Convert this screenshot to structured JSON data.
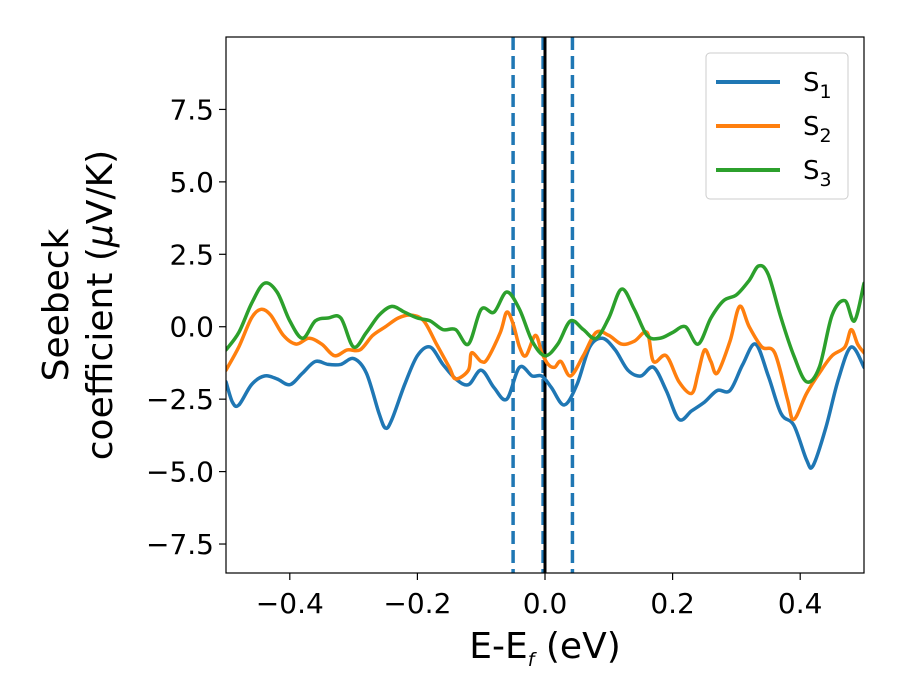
{
  "chart_data": {
    "type": "line",
    "xlabel": "E-E",
    "xlabel_sub": "f",
    "xlabel_unit": " (eV)",
    "ylabel_line1": "Seebeck",
    "ylabel_line2_a": "coefficient  (",
    "ylabel_mu": "μ",
    "ylabel_line2_b": "V/K)",
    "xlim": [
      -0.5,
      0.5
    ],
    "ylim": [
      -8.5,
      10.0
    ],
    "xticks": [
      -0.4,
      -0.2,
      0.0,
      0.2,
      0.4
    ],
    "xtick_labels": [
      "−0.4",
      "−0.2",
      "0.0",
      "0.2",
      "0.4"
    ],
    "yticks": [
      -7.5,
      -5.0,
      -2.5,
      0.0,
      2.5,
      5.0,
      7.5
    ],
    "ytick_labels": [
      "−7.5",
      "−5.0",
      "−2.5",
      "0.0",
      "2.5",
      "5.0",
      "7.5"
    ],
    "grid": false,
    "legend_position": "top-right",
    "vlines": [
      {
        "x": -0.05,
        "style": "dashed",
        "color": "#1f77b4"
      },
      {
        "x": -0.003,
        "style": "dashed",
        "color": "#1f77b4"
      },
      {
        "x": 0.043,
        "style": "dashed",
        "color": "#1f77b4"
      },
      {
        "x": 0.0,
        "style": "solid",
        "color": "#000000"
      }
    ],
    "series": [
      {
        "name": "S",
        "sub": "1",
        "color": "#1f77b4",
        "points": [
          [
            -0.5,
            -1.9
          ],
          [
            -0.49,
            -2.6
          ],
          [
            -0.48,
            -2.7
          ],
          [
            -0.46,
            -2.0
          ],
          [
            -0.44,
            -1.7
          ],
          [
            -0.42,
            -1.8
          ],
          [
            -0.4,
            -2.0
          ],
          [
            -0.38,
            -1.6
          ],
          [
            -0.36,
            -1.2
          ],
          [
            -0.34,
            -1.3
          ],
          [
            -0.32,
            -1.3
          ],
          [
            -0.3,
            -1.1
          ],
          [
            -0.28,
            -1.6
          ],
          [
            -0.26,
            -3.0
          ],
          [
            -0.25,
            -3.5
          ],
          [
            -0.24,
            -3.2
          ],
          [
            -0.22,
            -2.0
          ],
          [
            -0.2,
            -1.0
          ],
          [
            -0.18,
            -0.7
          ],
          [
            -0.16,
            -1.3
          ],
          [
            -0.14,
            -1.8
          ],
          [
            -0.12,
            -2.0
          ],
          [
            -0.1,
            -1.5
          ],
          [
            -0.08,
            -2.1
          ],
          [
            -0.06,
            -2.5
          ],
          [
            -0.04,
            -1.4
          ],
          [
            -0.02,
            -1.7
          ],
          [
            -0.005,
            -1.7
          ],
          [
            0.01,
            -2.1
          ],
          [
            0.03,
            -2.7
          ],
          [
            0.05,
            -2.0
          ],
          [
            0.07,
            -0.7
          ],
          [
            0.09,
            -0.4
          ],
          [
            0.11,
            -0.8
          ],
          [
            0.13,
            -1.5
          ],
          [
            0.15,
            -1.7
          ],
          [
            0.17,
            -1.4
          ],
          [
            0.19,
            -2.2
          ],
          [
            0.21,
            -3.2
          ],
          [
            0.23,
            -2.9
          ],
          [
            0.25,
            -2.6
          ],
          [
            0.27,
            -2.2
          ],
          [
            0.29,
            -2.2
          ],
          [
            0.31,
            -1.3
          ],
          [
            0.33,
            -0.6
          ],
          [
            0.35,
            -1.7
          ],
          [
            0.37,
            -3.0
          ],
          [
            0.39,
            -3.4
          ],
          [
            0.41,
            -4.6
          ],
          [
            0.42,
            -4.8
          ],
          [
            0.44,
            -3.5
          ],
          [
            0.46,
            -1.8
          ],
          [
            0.48,
            -0.7
          ],
          [
            0.5,
            -1.4
          ]
        ]
      },
      {
        "name": "S",
        "sub": "2",
        "color": "#ff7f0e",
        "points": [
          [
            -0.5,
            -1.5
          ],
          [
            -0.48,
            -0.7
          ],
          [
            -0.46,
            0.3
          ],
          [
            -0.445,
            0.6
          ],
          [
            -0.43,
            0.4
          ],
          [
            -0.41,
            -0.3
          ],
          [
            -0.39,
            -0.6
          ],
          [
            -0.37,
            -0.4
          ],
          [
            -0.35,
            -0.6
          ],
          [
            -0.33,
            -1.0
          ],
          [
            -0.31,
            -0.8
          ],
          [
            -0.29,
            -0.8
          ],
          [
            -0.27,
            -0.3
          ],
          [
            -0.25,
            0.0
          ],
          [
            -0.23,
            0.3
          ],
          [
            -0.21,
            0.4
          ],
          [
            -0.19,
            0.2
          ],
          [
            -0.17,
            -0.6
          ],
          [
            -0.15,
            -1.4
          ],
          [
            -0.14,
            -1.8
          ],
          [
            -0.12,
            -1.5
          ],
          [
            -0.115,
            -0.9
          ],
          [
            -0.1,
            -1.2
          ],
          [
            -0.09,
            -1.1
          ],
          [
            -0.07,
            -0.2
          ],
          [
            -0.06,
            0.5
          ],
          [
            -0.05,
            0.1
          ],
          [
            -0.04,
            -0.7
          ],
          [
            -0.03,
            -1.0
          ],
          [
            -0.015,
            -0.3
          ],
          [
            -0.005,
            -0.9
          ],
          [
            0.005,
            -1.3
          ],
          [
            0.015,
            -1.4
          ],
          [
            0.025,
            -1.2
          ],
          [
            0.04,
            -1.7
          ],
          [
            0.06,
            -1.0
          ],
          [
            0.08,
            -0.2
          ],
          [
            0.1,
            -0.3
          ],
          [
            0.12,
            -0.6
          ],
          [
            0.14,
            -0.5
          ],
          [
            0.16,
            -0.2
          ],
          [
            0.17,
            -1.2
          ],
          [
            0.19,
            -1.0
          ],
          [
            0.21,
            -1.9
          ],
          [
            0.23,
            -2.3
          ],
          [
            0.24,
            -1.6
          ],
          [
            0.25,
            -0.8
          ],
          [
            0.26,
            -1.2
          ],
          [
            0.27,
            -1.6
          ],
          [
            0.29,
            -0.5
          ],
          [
            0.305,
            0.7
          ],
          [
            0.32,
            0.0
          ],
          [
            0.34,
            -0.7
          ],
          [
            0.36,
            -0.9
          ],
          [
            0.38,
            -2.5
          ],
          [
            0.39,
            -3.2
          ],
          [
            0.41,
            -2.3
          ],
          [
            0.43,
            -1.6
          ],
          [
            0.45,
            -1.0
          ],
          [
            0.47,
            -0.7
          ],
          [
            0.48,
            -0.1
          ],
          [
            0.49,
            -0.6
          ],
          [
            0.5,
            -0.9
          ]
        ]
      },
      {
        "name": "S",
        "sub": "3",
        "color": "#2ca02c",
        "points": [
          [
            -0.5,
            -0.8
          ],
          [
            -0.48,
            -0.2
          ],
          [
            -0.46,
            0.8
          ],
          [
            -0.44,
            1.5
          ],
          [
            -0.42,
            1.2
          ],
          [
            -0.4,
            0.2
          ],
          [
            -0.38,
            -0.4
          ],
          [
            -0.36,
            0.2
          ],
          [
            -0.34,
            0.3
          ],
          [
            -0.32,
            0.3
          ],
          [
            -0.3,
            -0.7
          ],
          [
            -0.28,
            -0.2
          ],
          [
            -0.26,
            0.4
          ],
          [
            -0.24,
            0.7
          ],
          [
            -0.22,
            0.5
          ],
          [
            -0.2,
            0.3
          ],
          [
            -0.18,
            0.2
          ],
          [
            -0.16,
            -0.1
          ],
          [
            -0.14,
            -0.1
          ],
          [
            -0.12,
            -0.6
          ],
          [
            -0.1,
            0.6
          ],
          [
            -0.08,
            0.5
          ],
          [
            -0.06,
            1.2
          ],
          [
            -0.04,
            0.6
          ],
          [
            -0.02,
            -0.5
          ],
          [
            0.0,
            -1.0
          ],
          [
            0.02,
            -0.6
          ],
          [
            0.04,
            0.2
          ],
          [
            0.06,
            -0.1
          ],
          [
            0.08,
            -0.4
          ],
          [
            0.1,
            0.3
          ],
          [
            0.12,
            1.3
          ],
          [
            0.14,
            0.6
          ],
          [
            0.16,
            -0.3
          ],
          [
            0.18,
            -0.4
          ],
          [
            0.2,
            -0.2
          ],
          [
            0.22,
            0.0
          ],
          [
            0.24,
            -0.6
          ],
          [
            0.26,
            0.3
          ],
          [
            0.28,
            0.9
          ],
          [
            0.3,
            1.1
          ],
          [
            0.32,
            1.6
          ],
          [
            0.335,
            2.1
          ],
          [
            0.35,
            1.8
          ],
          [
            0.37,
            0.3
          ],
          [
            0.39,
            -1.0
          ],
          [
            0.41,
            -1.9
          ],
          [
            0.43,
            -1.4
          ],
          [
            0.45,
            0.4
          ],
          [
            0.47,
            0.9
          ],
          [
            0.485,
            0.2
          ],
          [
            0.5,
            1.5
          ]
        ]
      }
    ]
  }
}
